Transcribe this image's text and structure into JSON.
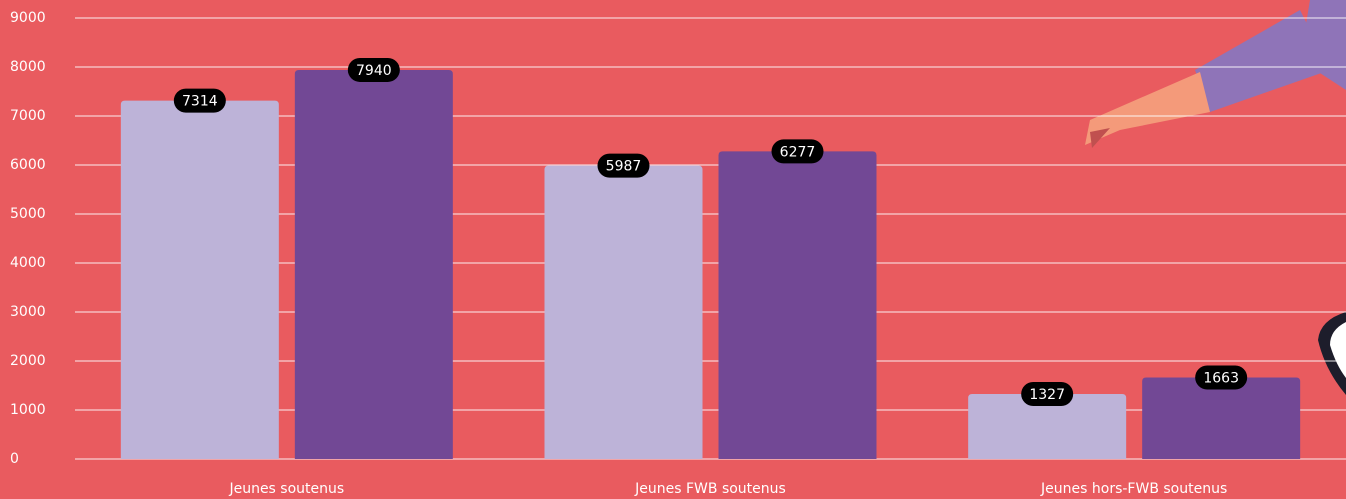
{
  "chart_data": {
    "type": "bar",
    "categories": [
      "Jeunes soutenus",
      "Jeunes FWB soutenus",
      "Jeunes hors-FWB soutenus"
    ],
    "series": [
      {
        "color": "#bdb3d8",
        "values": [
          7314,
          5987,
          1327
        ]
      },
      {
        "color": "#724895",
        "values": [
          7940,
          6277,
          1663
        ]
      }
    ],
    "ylim": [
      0,
      9000
    ],
    "yticks": [
      0,
      1000,
      2000,
      3000,
      4000,
      5000,
      6000,
      7000,
      8000,
      9000
    ],
    "grid": true
  }
}
